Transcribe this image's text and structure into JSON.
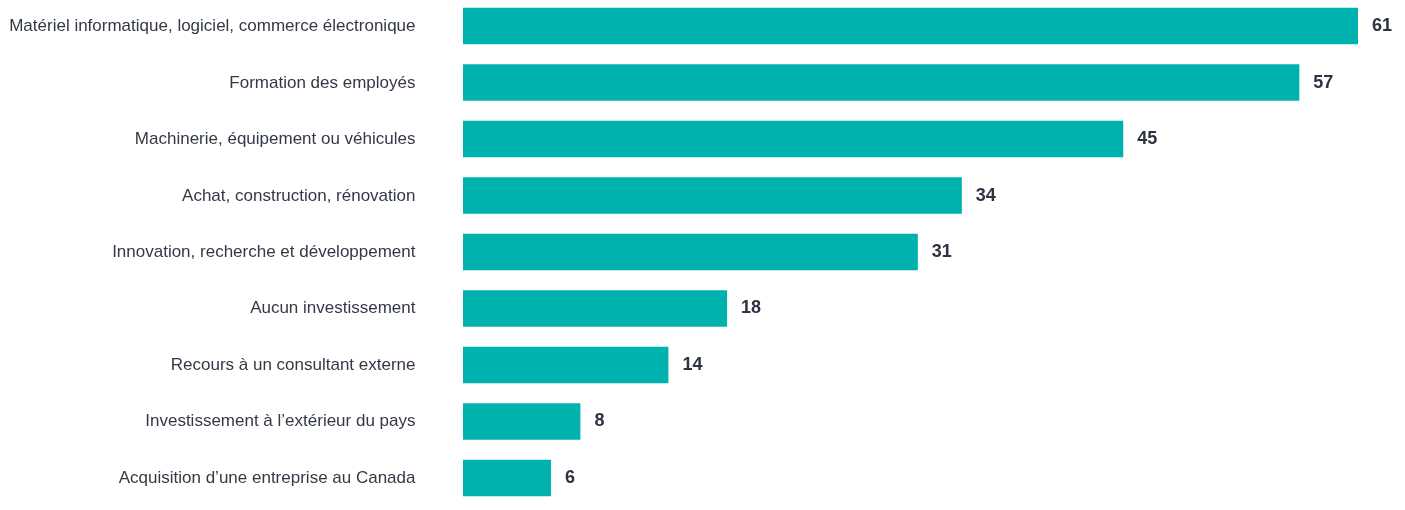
{
  "chart_data": {
    "type": "bar",
    "orientation": "horizontal",
    "categories": [
      "Matériel informatique, logiciel, commerce électronique",
      "Formation des employés",
      "Machinerie, équipement ou véhicules",
      "Achat, construction, rénovation",
      "Innovation, recherche et développement",
      "Aucun investissement",
      "Recours à un consultant externe",
      "Investissement à l’extérieur du pays",
      "Acquisition d’une entreprise au Canada"
    ],
    "values": [
      61,
      57,
      45,
      34,
      31,
      18,
      14,
      8,
      6
    ],
    "color": "#00b2ad",
    "data_labels": true
  }
}
